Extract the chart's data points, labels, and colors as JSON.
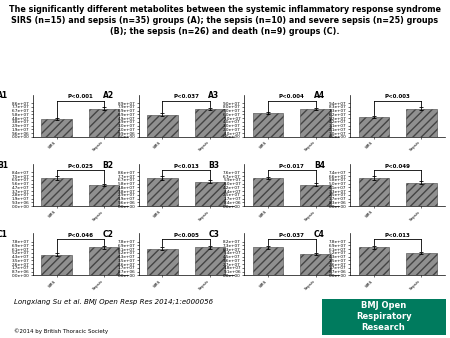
{
  "title": "The significantly different metabolites between the systemic inflammatory response syndrome\nSIRS (n=15) and sepsis (n=35) groups (A); the sepsis (n=10) and severe sepsis (n=25) groups\n(B); the sepsis (n=26) and death (n=9) groups (C).",
  "subplot_labels": [
    [
      "A1",
      "A2",
      "A3",
      "A4"
    ],
    [
      "B1",
      "B2",
      "B3",
      "B4"
    ],
    [
      "C1",
      "C2",
      "C3",
      "C4"
    ]
  ],
  "pvalues": [
    [
      "P<0.001",
      "P<0.037",
      "P<0.004",
      "P<0.003"
    ],
    [
      "P<0.025",
      "P<0.013",
      "P<0.017",
      "P<0.049"
    ],
    [
      "P<0.046",
      "P<0.005",
      "P<0.037",
      "P<0.013"
    ]
  ],
  "bar_data": {
    "A1": {
      "bar1": 0.45,
      "bar2": 0.72,
      "err1": 0.03,
      "err2": 0.04
    },
    "A2": {
      "bar1": 0.58,
      "bar2": 0.74,
      "err1": 0.04,
      "err2": 0.03
    },
    "A3": {
      "bar1": 0.63,
      "bar2": 0.75,
      "err1": 0.03,
      "err2": 0.03
    },
    "A4": {
      "bar1": 0.55,
      "bar2": 0.78,
      "err1": 0.04,
      "err2": 0.04
    },
    "B1": {
      "bar1": 0.7,
      "bar2": 0.52,
      "err1": 0.04,
      "err2": 0.03
    },
    "B2": {
      "bar1": 0.72,
      "bar2": 0.62,
      "err1": 0.04,
      "err2": 0.04
    },
    "B3": {
      "bar1": 0.63,
      "bar2": 0.48,
      "err1": 0.03,
      "err2": 0.03
    },
    "B4": {
      "bar1": 0.62,
      "bar2": 0.52,
      "err1": 0.04,
      "err2": 0.03
    },
    "C1": {
      "bar1": 0.48,
      "bar2": 0.65,
      "err1": 0.03,
      "err2": 0.04
    },
    "C2": {
      "bar1": 0.62,
      "bar2": 0.65,
      "err1": 0.04,
      "err2": 0.03
    },
    "C3": {
      "bar1": 0.68,
      "bar2": 0.52,
      "err1": 0.04,
      "err2": 0.03
    },
    "C4": {
      "bar1": 0.65,
      "bar2": 0.52,
      "err1": 0.04,
      "err2": 0.03
    }
  },
  "bar_color": "#909090",
  "bar_hatch": "////",
  "xtick_labels": [
    "SIRS",
    "Sepsis"
  ],
  "citation": "Longxiang Su et al. BMJ Open Resp Res 2014;1:e000056",
  "copyright": "©2014 by British Thoracic Society",
  "bmj_logo_text": "BMJ Open\nRespiratory\nResearch",
  "bmj_logo_bg": "#007B5E",
  "background_color": "#ffffff",
  "title_fontsize": 5.8,
  "tick_fontsize": 3.0,
  "subplot_label_fontsize": 5.5,
  "pvalue_fontsize": 4.0,
  "citation_fontsize": 5.0,
  "copyright_fontsize": 4.0,
  "bmj_fontsize": 6.0
}
